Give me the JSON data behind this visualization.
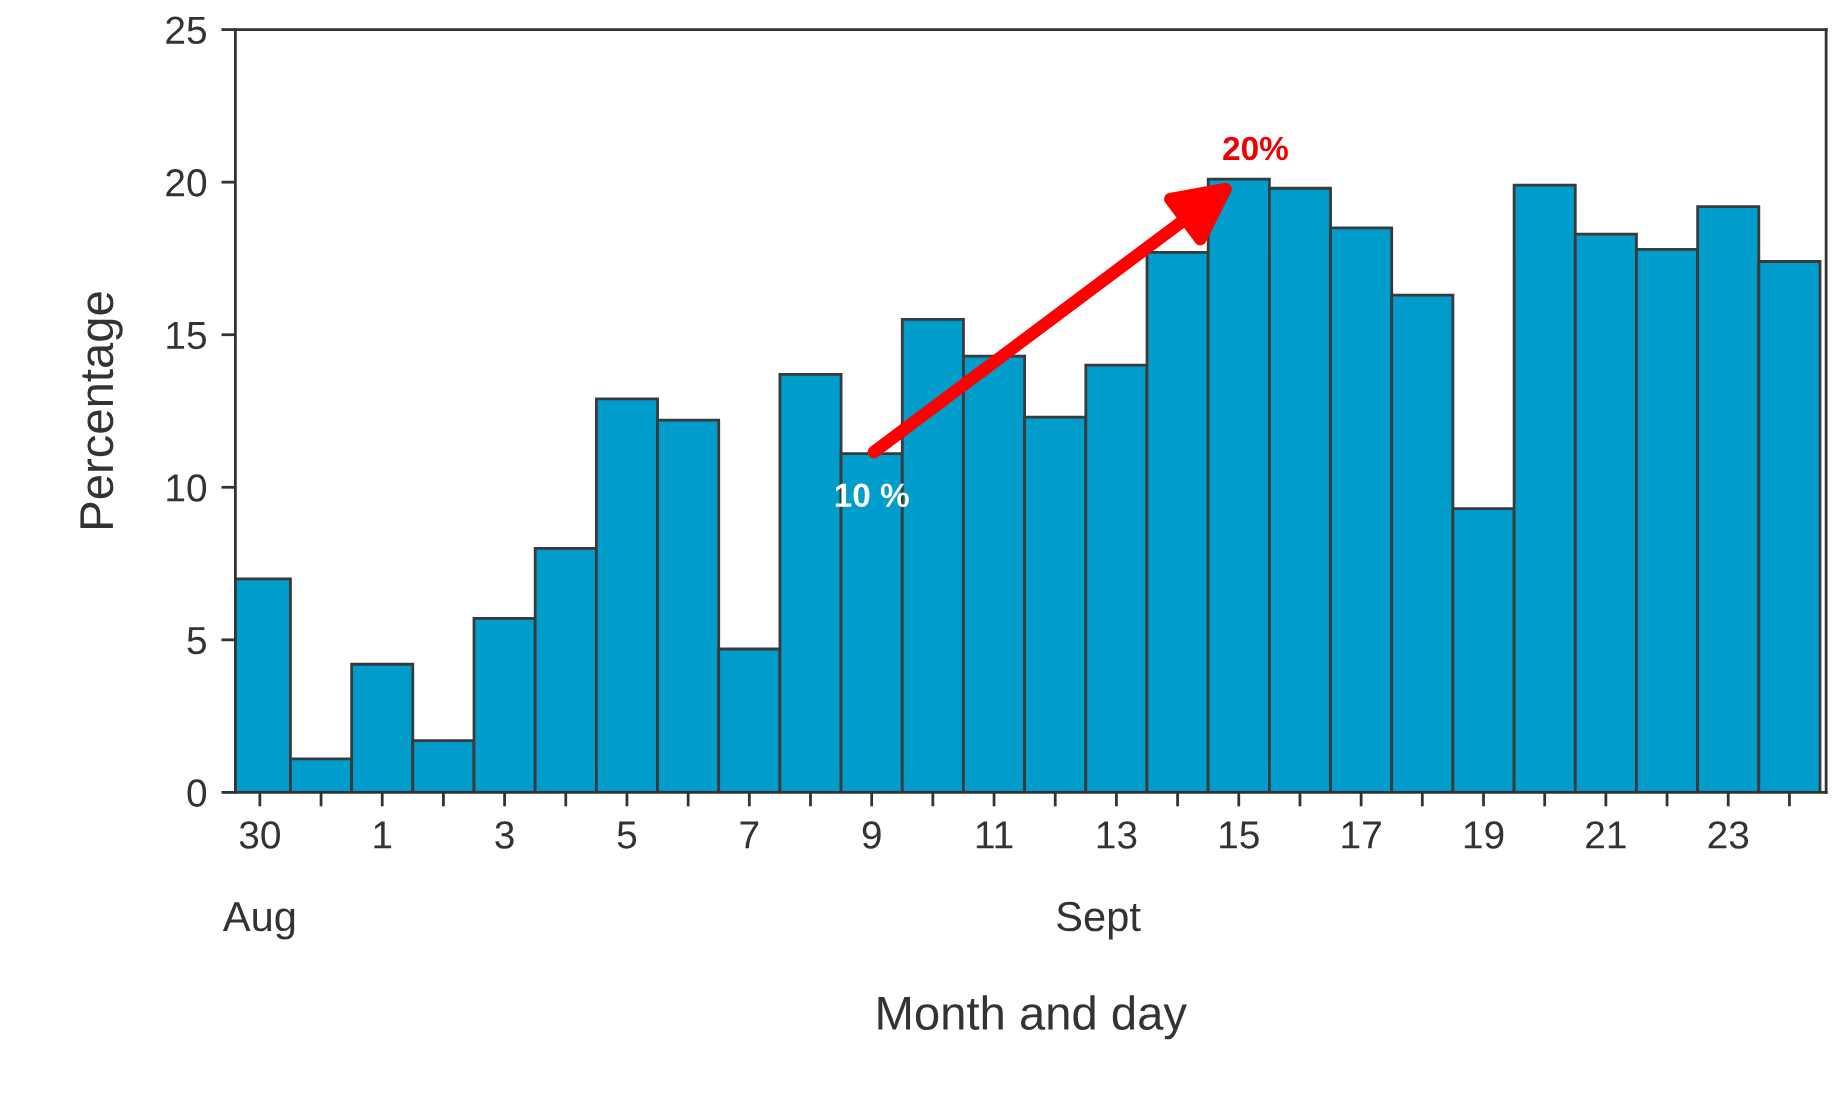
{
  "chart_data": {
    "type": "bar",
    "xlabel": "Month and day",
    "ylabel": "Percentage",
    "categories": [
      "30",
      null,
      "1",
      null,
      "3",
      null,
      "5",
      null,
      "7",
      null,
      "9",
      null,
      "11",
      null,
      "13",
      null,
      "15",
      null,
      "17",
      null,
      "19",
      null,
      "21",
      null,
      "23",
      null
    ],
    "values": [
      7.0,
      1.1,
      4.2,
      1.7,
      5.7,
      8.0,
      12.9,
      12.2,
      4.7,
      13.7,
      11.1,
      15.5,
      14.3,
      12.3,
      14.0,
      17.7,
      20.1,
      19.8,
      18.5,
      16.3,
      9.3,
      19.9,
      18.3,
      17.8,
      19.2,
      17.4
    ],
    "color": "#009ccc",
    "ylim": [
      0,
      25
    ],
    "yticks": [
      0,
      5,
      10,
      15,
      20,
      25
    ],
    "grid": false,
    "legend": false,
    "annotations": [
      "Aug",
      "Sept",
      {
        "text": "10 %",
        "x": "9",
        "y": 11.1
      },
      {
        "text": "20%",
        "x": "15",
        "y": 20.1
      }
    ]
  }
}
